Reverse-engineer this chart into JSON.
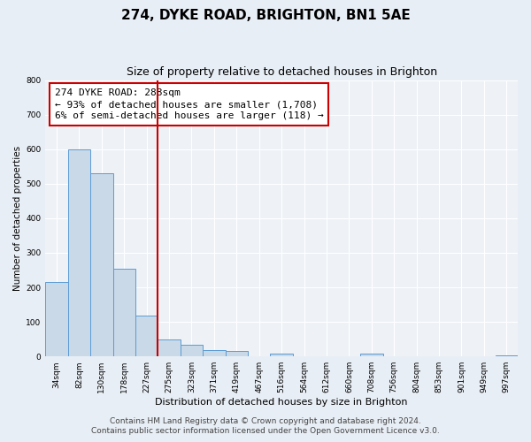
{
  "title": "274, DYKE ROAD, BRIGHTON, BN1 5AE",
  "subtitle": "Size of property relative to detached houses in Brighton",
  "xlabel": "Distribution of detached houses by size in Brighton",
  "ylabel": "Number of detached properties",
  "bin_labels": [
    "34sqm",
    "82sqm",
    "130sqm",
    "178sqm",
    "227sqm",
    "275sqm",
    "323sqm",
    "371sqm",
    "419sqm",
    "467sqm",
    "516sqm",
    "564sqm",
    "612sqm",
    "660sqm",
    "708sqm",
    "756sqm",
    "804sqm",
    "853sqm",
    "901sqm",
    "949sqm",
    "997sqm"
  ],
  "bar_values": [
    215,
    600,
    530,
    255,
    118,
    50,
    33,
    18,
    15,
    0,
    8,
    0,
    0,
    0,
    8,
    0,
    0,
    0,
    0,
    0,
    3
  ],
  "bar_color": "#c9d9e8",
  "bar_edge_color": "#5b9bd5",
  "vline_x_idx": 5,
  "vline_color": "#cc0000",
  "annotation_line1": "274 DYKE ROAD: 288sqm",
  "annotation_line2": "← 93% of detached houses are smaller (1,708)",
  "annotation_line3": "6% of semi-detached houses are larger (118) →",
  "annotation_box_color": "#ffffff",
  "annotation_box_edge": "#cc0000",
  "ylim": [
    0,
    800
  ],
  "yticks": [
    0,
    100,
    200,
    300,
    400,
    500,
    600,
    700,
    800
  ],
  "footer1": "Contains HM Land Registry data © Crown copyright and database right 2024.",
  "footer2": "Contains public sector information licensed under the Open Government Licence v3.0.",
  "background_color": "#e8eef5",
  "plot_background": "#eef2f7",
  "title_fontsize": 11,
  "subtitle_fontsize": 9,
  "annotation_fontsize": 8,
  "footer_fontsize": 6.5,
  "ylabel_fontsize": 7.5,
  "xlabel_fontsize": 8,
  "tick_fontsize": 6.5
}
